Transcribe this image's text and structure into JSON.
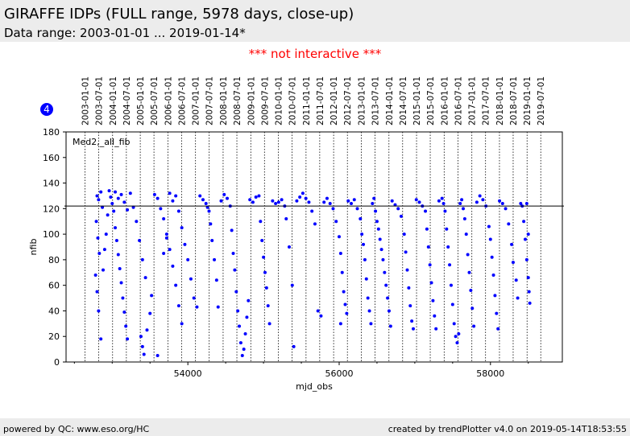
{
  "header": {
    "title": "GIRAFFE IDPs (FULL range, 5978 days, close-up)",
    "subtitle": "Data range: 2003-01-01 ... 2019-01-14*"
  },
  "notice": "*** not interactive ***",
  "footer": {
    "left": "powered by QC: www.eso.org/HC",
    "right": "created by trendPlotter v4.0 on 2019-05-14T18:53:55"
  },
  "colors": {
    "data": "#0000ff",
    "notice": "#ff0000",
    "bar_bg": "#ececec"
  },
  "chart_data": {
    "type": "scatter",
    "badge": "4",
    "series_label": "Med2,_all_fib",
    "xlabel": "mjd_obs",
    "ylabel": "nfib",
    "xlim": [
      52390,
      58950
    ],
    "ylim": [
      0,
      180
    ],
    "xticks": [
      54000,
      56000,
      58000
    ],
    "yticks": [
      0,
      20,
      40,
      60,
      80,
      100,
      120,
      140,
      160,
      180
    ],
    "reference_line_y": 122,
    "date_markers": [
      {
        "label": "2003-01-01",
        "mjd": 52640
      },
      {
        "label": "2003-07-01",
        "mjd": 52821
      },
      {
        "label": "2004-01-01",
        "mjd": 53005
      },
      {
        "label": "2004-07-01",
        "mjd": 53187
      },
      {
        "label": "2005-01-01",
        "mjd": 53371
      },
      {
        "label": "2005-07-01",
        "mjd": 53552
      },
      {
        "label": "2006-01-01",
        "mjd": 53736
      },
      {
        "label": "2006-07-01",
        "mjd": 53917
      },
      {
        "label": "2007-01-01",
        "mjd": 54101
      },
      {
        "label": "2007-07-01",
        "mjd": 54282
      },
      {
        "label": "2008-01-01",
        "mjd": 54466
      },
      {
        "label": "2008-07-01",
        "mjd": 54648
      },
      {
        "label": "2009-01-01",
        "mjd": 54832
      },
      {
        "label": "2009-07-01",
        "mjd": 55013
      },
      {
        "label": "2010-01-01",
        "mjd": 55197
      },
      {
        "label": "2010-07-01",
        "mjd": 55378
      },
      {
        "label": "2011-01-01",
        "mjd": 55562
      },
      {
        "label": "2011-07-01",
        "mjd": 55743
      },
      {
        "label": "2012-01-01",
        "mjd": 55927
      },
      {
        "label": "2012-07-01",
        "mjd": 56109
      },
      {
        "label": "2013-01-01",
        "mjd": 56293
      },
      {
        "label": "2013-07-01",
        "mjd": 56474
      },
      {
        "label": "2014-01-01",
        "mjd": 56658
      },
      {
        "label": "2014-07-01",
        "mjd": 56839
      },
      {
        "label": "2015-01-01",
        "mjd": 57023
      },
      {
        "label": "2015-07-01",
        "mjd": 57204
      },
      {
        "label": "2016-01-01",
        "mjd": 57388
      },
      {
        "label": "2016-07-01",
        "mjd": 57570
      },
      {
        "label": "2017-01-01",
        "mjd": 57754
      },
      {
        "label": "2017-07-01",
        "mjd": 57935
      },
      {
        "label": "2018-01-01",
        "mjd": 58119
      },
      {
        "label": "2018-07-01",
        "mjd": 58300
      },
      {
        "label": "2019-01-01",
        "mjd": 58484
      },
      {
        "label": "2019-07-01",
        "mjd": 58665
      }
    ],
    "points": [
      [
        52800,
        130
      ],
      [
        52820,
        127
      ],
      [
        52850,
        133
      ],
      [
        52870,
        121
      ],
      [
        52790,
        110
      ],
      [
        52810,
        97
      ],
      [
        52830,
        85
      ],
      [
        52780,
        68
      ],
      [
        52800,
        55
      ],
      [
        52820,
        40
      ],
      [
        52850,
        18
      ],
      [
        52880,
        72
      ],
      [
        52900,
        88
      ],
      [
        52920,
        100
      ],
      [
        52940,
        115
      ],
      [
        52960,
        134
      ],
      [
        52980,
        129
      ],
      [
        53000,
        124
      ],
      [
        53020,
        118
      ],
      [
        53040,
        105
      ],
      [
        53060,
        95
      ],
      [
        53080,
        84
      ],
      [
        53100,
        73
      ],
      [
        53120,
        62
      ],
      [
        53140,
        50
      ],
      [
        53160,
        39
      ],
      [
        53180,
        28
      ],
      [
        53200,
        18
      ],
      [
        53040,
        133
      ],
      [
        53080,
        128
      ],
      [
        53120,
        131
      ],
      [
        53160,
        125
      ],
      [
        53200,
        119
      ],
      [
        53240,
        132
      ],
      [
        53280,
        121
      ],
      [
        53320,
        110
      ],
      [
        53360,
        95
      ],
      [
        53400,
        80
      ],
      [
        53440,
        66
      ],
      [
        53380,
        20
      ],
      [
        53400,
        12
      ],
      [
        53420,
        6
      ],
      [
        53460,
        25
      ],
      [
        53500,
        38
      ],
      [
        53520,
        52
      ],
      [
        53560,
        131
      ],
      [
        53600,
        128
      ],
      [
        53640,
        120
      ],
      [
        53680,
        112
      ],
      [
        53720,
        100
      ],
      [
        53760,
        88
      ],
      [
        53800,
        75
      ],
      [
        53840,
        60
      ],
      [
        53880,
        44
      ],
      [
        53920,
        30
      ],
      [
        53600,
        5
      ],
      [
        53680,
        85
      ],
      [
        53720,
        97
      ],
      [
        53760,
        132
      ],
      [
        53800,
        126
      ],
      [
        53840,
        130
      ],
      [
        53880,
        118
      ],
      [
        53920,
        105
      ],
      [
        53960,
        92
      ],
      [
        54000,
        80
      ],
      [
        54040,
        65
      ],
      [
        54080,
        50
      ],
      [
        54120,
        43
      ],
      [
        54160,
        130
      ],
      [
        54200,
        127
      ],
      [
        54240,
        124
      ],
      [
        54260,
        121
      ],
      [
        54280,
        118
      ],
      [
        54300,
        108
      ],
      [
        54320,
        95
      ],
      [
        54350,
        80
      ],
      [
        54380,
        64
      ],
      [
        54400,
        43
      ],
      [
        54440,
        126
      ],
      [
        54480,
        131
      ],
      [
        54520,
        128
      ],
      [
        54560,
        122
      ],
      [
        54580,
        103
      ],
      [
        54600,
        85
      ],
      [
        54620,
        72
      ],
      [
        54640,
        55
      ],
      [
        54660,
        40
      ],
      [
        54680,
        28
      ],
      [
        54700,
        15
      ],
      [
        54720,
        5
      ],
      [
        54740,
        10
      ],
      [
        54760,
        22
      ],
      [
        54780,
        35
      ],
      [
        54800,
        48
      ],
      [
        54820,
        127
      ],
      [
        54860,
        125
      ],
      [
        54900,
        129
      ],
      [
        54940,
        130
      ],
      [
        54960,
        110
      ],
      [
        54980,
        95
      ],
      [
        55000,
        82
      ],
      [
        55020,
        70
      ],
      [
        55040,
        58
      ],
      [
        55060,
        44
      ],
      [
        55080,
        30
      ],
      [
        55120,
        126
      ],
      [
        55160,
        124
      ],
      [
        55200,
        125
      ],
      [
        55240,
        127
      ],
      [
        55280,
        122
      ],
      [
        55300,
        112
      ],
      [
        55340,
        90
      ],
      [
        55380,
        60
      ],
      [
        55400,
        12
      ],
      [
        55440,
        126
      ],
      [
        55480,
        129
      ],
      [
        55520,
        132
      ],
      [
        55560,
        128
      ],
      [
        55600,
        125
      ],
      [
        55640,
        118
      ],
      [
        55680,
        108
      ],
      [
        55720,
        40
      ],
      [
        55760,
        36
      ],
      [
        55800,
        125
      ],
      [
        55840,
        128
      ],
      [
        55880,
        124
      ],
      [
        55920,
        120
      ],
      [
        55960,
        110
      ],
      [
        56000,
        98
      ],
      [
        56020,
        85
      ],
      [
        56040,
        70
      ],
      [
        56060,
        55
      ],
      [
        56080,
        45
      ],
      [
        56100,
        38
      ],
      [
        56020,
        30
      ],
      [
        56120,
        126
      ],
      [
        56160,
        124
      ],
      [
        56200,
        127
      ],
      [
        56240,
        120
      ],
      [
        56280,
        112
      ],
      [
        56300,
        100
      ],
      [
        56320,
        92
      ],
      [
        56340,
        80
      ],
      [
        56360,
        65
      ],
      [
        56380,
        50
      ],
      [
        56400,
        40
      ],
      [
        56420,
        30
      ],
      [
        56440,
        124
      ],
      [
        56460,
        128
      ],
      [
        56480,
        118
      ],
      [
        56500,
        110
      ],
      [
        56520,
        104
      ],
      [
        56540,
        96
      ],
      [
        56560,
        88
      ],
      [
        56580,
        80
      ],
      [
        56600,
        70
      ],
      [
        56620,
        60
      ],
      [
        56640,
        50
      ],
      [
        56660,
        40
      ],
      [
        56680,
        28
      ],
      [
        56700,
        126
      ],
      [
        56740,
        123
      ],
      [
        56780,
        120
      ],
      [
        56820,
        114
      ],
      [
        56860,
        100
      ],
      [
        56880,
        86
      ],
      [
        56900,
        72
      ],
      [
        56920,
        58
      ],
      [
        56940,
        44
      ],
      [
        56960,
        32
      ],
      [
        56980,
        26
      ],
      [
        57020,
        127
      ],
      [
        57060,
        125
      ],
      [
        57100,
        122
      ],
      [
        57140,
        118
      ],
      [
        57160,
        104
      ],
      [
        57180,
        90
      ],
      [
        57200,
        76
      ],
      [
        57220,
        62
      ],
      [
        57240,
        48
      ],
      [
        57260,
        36
      ],
      [
        57280,
        26
      ],
      [
        57320,
        126
      ],
      [
        57360,
        128
      ],
      [
        57380,
        124
      ],
      [
        57400,
        118
      ],
      [
        57420,
        104
      ],
      [
        57440,
        90
      ],
      [
        57460,
        76
      ],
      [
        57480,
        60
      ],
      [
        57500,
        45
      ],
      [
        57520,
        30
      ],
      [
        57540,
        20
      ],
      [
        57560,
        15
      ],
      [
        57580,
        22
      ],
      [
        57600,
        124
      ],
      [
        57620,
        127
      ],
      [
        57640,
        120
      ],
      [
        57660,
        112
      ],
      [
        57680,
        100
      ],
      [
        57700,
        84
      ],
      [
        57720,
        70
      ],
      [
        57740,
        56
      ],
      [
        57760,
        42
      ],
      [
        57780,
        28
      ],
      [
        57820,
        125
      ],
      [
        57860,
        130
      ],
      [
        57900,
        127
      ],
      [
        57940,
        122
      ],
      [
        57980,
        106
      ],
      [
        58000,
        96
      ],
      [
        58020,
        82
      ],
      [
        58040,
        68
      ],
      [
        58060,
        52
      ],
      [
        58080,
        38
      ],
      [
        58100,
        26
      ],
      [
        58120,
        126
      ],
      [
        58160,
        124
      ],
      [
        58200,
        120
      ],
      [
        58240,
        108
      ],
      [
        58280,
        92
      ],
      [
        58300,
        78
      ],
      [
        58340,
        64
      ],
      [
        58360,
        50
      ],
      [
        58400,
        124
      ],
      [
        58420,
        122
      ],
      [
        58440,
        110
      ],
      [
        58460,
        96
      ],
      [
        58480,
        80
      ],
      [
        58500,
        66
      ],
      [
        58510,
        55
      ],
      [
        58520,
        46
      ],
      [
        58480,
        124
      ],
      [
        58500,
        100
      ]
    ]
  }
}
